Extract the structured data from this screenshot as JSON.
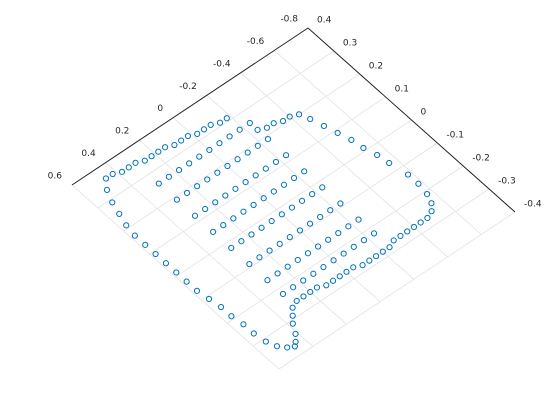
{
  "chart_data": {
    "type": "scatter",
    "color": "#0072bd",
    "grid": true,
    "xlim": [
      -0.8,
      0.6
    ],
    "xticks": [
      0.6,
      0.4,
      0.2,
      0,
      -0.2,
      -0.4,
      -0.6,
      -0.8
    ],
    "ylim": [
      -0.4,
      0.4
    ],
    "yticks": [
      0.4,
      0.3,
      0.2,
      0.1,
      0,
      -0.1,
      -0.2,
      -0.3,
      -0.4
    ],
    "x": [
      -0.18,
      -0.14,
      -0.1,
      -0.06,
      -0.02,
      0.02,
      0.06,
      0.1,
      0.14,
      0.18,
      0.22,
      0.26,
      0.3,
      0.34,
      0.38,
      0.42,
      0.46,
      0.5,
      0.53,
      0.55,
      0.57,
      0.58,
      0.58,
      0.58,
      0.58,
      0.58,
      0.58,
      0.58,
      0.57,
      0.56,
      0.56,
      0.55,
      0.55,
      0.54,
      0.52,
      0.49,
      0.46,
      0.44,
      0.41,
      0.38,
      0.35,
      0.32,
      0.28,
      0.24,
      0.2,
      0.16,
      0.12,
      0.08,
      0.04,
      0,
      -0.04,
      -0.08,
      -0.12,
      -0.16,
      -0.2,
      -0.24,
      -0.28,
      -0.32,
      -0.36,
      -0.4,
      -0.44,
      -0.48,
      -0.52,
      -0.55,
      -0.57,
      -0.58,
      -0.58,
      -0.56,
      -0.55,
      -0.53,
      -0.52,
      -0.5,
      -0.48,
      -0.46,
      -0.44,
      -0.4,
      -0.36,
      -0.32,
      -0.28,
      -0.24,
      -0.24,
      -0.18,
      -0.12,
      -0.06,
      0,
      0.06,
      0.12,
      0.18,
      0.24,
      0.3,
      0.3,
      0.24,
      0.18,
      0.12,
      0.06,
      0,
      -0.06,
      -0.12,
      -0.18,
      -0.24,
      -0.24,
      -0.18,
      -0.12,
      -0.06,
      0,
      0.06,
      0.12,
      0.18,
      0.24,
      0.3,
      0.3,
      0.24,
      0.18,
      0.12,
      0.06,
      0,
      -0.06,
      -0.12,
      -0.18,
      -0.24,
      -0.24,
      -0.18,
      -0.12,
      -0.06,
      0,
      0.06,
      0.12,
      0.18,
      0.24,
      0.3,
      0.3,
      0.24,
      0.18,
      0.12,
      0.06,
      0,
      -0.06,
      -0.12,
      -0.18,
      -0.24,
      -0.24,
      -0.18,
      -0.12,
      -0.06,
      0,
      0.06,
      0.12,
      0.18,
      0.24,
      0.3,
      0.3,
      0.24,
      0.18,
      0.12,
      0.06,
      0,
      -0.06,
      -0.12,
      -0.18,
      -0.24
    ],
    "y": [
      0.31,
      0.31,
      0.32,
      0.32,
      0.32,
      0.33,
      0.33,
      0.33,
      0.34,
      0.34,
      0.34,
      0.34,
      0.35,
      0.35,
      0.35,
      0.36,
      0.36,
      0.33,
      0.29,
      0.25,
      0.21,
      0.17,
      0.13,
      0.09,
      0.05,
      0.01,
      -0.03,
      -0.07,
      -0.11,
      -0.15,
      -0.19,
      -0.23,
      -0.27,
      -0.31,
      -0.34,
      -0.36,
      -0.37,
      -0.36,
      -0.34,
      -0.31,
      -0.29,
      -0.27,
      -0.26,
      -0.26,
      -0.26,
      -0.26,
      -0.27,
      -0.27,
      -0.27,
      -0.27,
      -0.27,
      -0.28,
      -0.28,
      -0.28,
      -0.28,
      -0.28,
      -0.27,
      -0.27,
      -0.27,
      -0.27,
      -0.27,
      -0.27,
      -0.26,
      -0.24,
      -0.21,
      -0.17,
      -0.13,
      -0.07,
      -0.03,
      0.01,
      0.05,
      0.09,
      0.13,
      0.17,
      0.2,
      0.21,
      0.21,
      0.22,
      0.22,
      0.23,
      0.26,
      0.26,
      0.26,
      0.26,
      0.26,
      0.26,
      0.26,
      0.26,
      0.26,
      0.26,
      0.19,
      0.19,
      0.19,
      0.19,
      0.19,
      0.19,
      0.19,
      0.19,
      0.19,
      0.19,
      0.12,
      0.12,
      0.12,
      0.12,
      0.12,
      0.12,
      0.12,
      0.12,
      0.12,
      0.12,
      0.05,
      0.05,
      0.05,
      0.05,
      0.05,
      0.05,
      0.05,
      0.05,
      0.05,
      0.05,
      -0.02,
      -0.02,
      -0.02,
      -0.02,
      -0.02,
      -0.02,
      -0.02,
      -0.02,
      -0.02,
      -0.02,
      -0.09,
      -0.09,
      -0.09,
      -0.09,
      -0.09,
      -0.09,
      -0.09,
      -0.09,
      -0.09,
      -0.09,
      -0.16,
      -0.16,
      -0.16,
      -0.16,
      -0.16,
      -0.16,
      -0.16,
      -0.16,
      -0.16,
      -0.16,
      -0.22,
      -0.22,
      -0.22,
      -0.22,
      -0.22,
      -0.22,
      -0.22,
      -0.22,
      -0.22,
      -0.22
    ]
  }
}
